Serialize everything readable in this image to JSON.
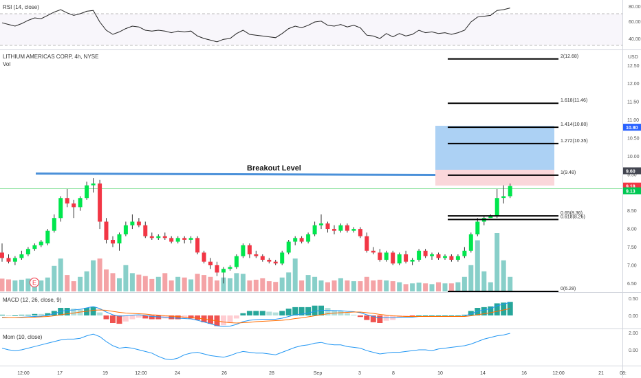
{
  "header": {
    "title": "LITHIUM AMERICAS CORP, 4h, NYSE",
    "vol_label": "Vol",
    "currency": "USD"
  },
  "indicators": {
    "rsi": {
      "label": "RSI (14, close)",
      "ticks": [
        "80.00",
        "60.00",
        "40.00"
      ]
    },
    "macd": {
      "label": "MACD (12, 26, close, 9)",
      "ticks": [
        "0.50",
        "0.00"
      ]
    },
    "mom": {
      "label": "Mom (10, close)",
      "ticks": [
        "2.00",
        "0.00"
      ]
    }
  },
  "annotation": {
    "breakout_label": "Breakout Level"
  },
  "earnings_marker": "E",
  "fib_levels": [
    {
      "label": "2(12.68)",
      "value": 12.68
    },
    {
      "label": "1.618(11.46)",
      "value": 11.46
    },
    {
      "label": "1.414(10.80)",
      "value": 10.8
    },
    {
      "label": "1.272(10.35)",
      "value": 10.35
    },
    {
      "label": "1(9.48)",
      "value": 9.48
    },
    {
      "label": "0.65(8.36)",
      "value": 8.36
    },
    {
      "label": "0.618(8.26)",
      "value": 8.26
    },
    {
      "label": "0(6.28)",
      "value": 6.28
    }
  ],
  "price_tags": [
    {
      "label": "10.80",
      "value": 10.8,
      "color": "#2962ff"
    },
    {
      "label": "9.60",
      "value": 9.6,
      "color": "#434651"
    },
    {
      "label": "9.18",
      "value": 9.18,
      "color": "#f23645"
    },
    {
      "label": "9.13",
      "value": 9.05,
      "color": "#00c853"
    }
  ],
  "x_axis_labels": [
    "12:00",
    "17",
    "19",
    "12:00",
    "24",
    "26",
    "28",
    "Sep",
    "3",
    "8",
    "10",
    "14",
    "16",
    "12:00",
    "21",
    "08:"
  ],
  "colors": {
    "up": "#00e64d",
    "down": "#f23645",
    "vol_up": "#88cfc9",
    "vol_down": "#f4a3a6",
    "breakout_line": "#4a90d9",
    "target_zone": "#9ec9f2",
    "stop_zone": "#f9d0d3",
    "rsi_line": "#222222",
    "macd_line": "#2196f3",
    "signal_line": "#ff6d00",
    "mom_line": "#2196f3"
  },
  "chart_data": {
    "type": "candlestick",
    "symbol": "LITHIUM AMERICAS CORP",
    "timeframe": "4h",
    "exchange": "NYSE",
    "price_range": [
      6.28,
      12.75
    ],
    "price_ticks": [
      6.5,
      7.0,
      7.5,
      8.0,
      8.5,
      9.0,
      9.5,
      10.0,
      10.5,
      11.0,
      11.5,
      12.0,
      12.5
    ],
    "last_price": 9.18,
    "breakout_level": 9.48,
    "candles": [
      [
        7.35,
        7.6,
        7.1,
        7.2
      ],
      [
        7.2,
        7.3,
        7.05,
        7.1
      ],
      [
        7.1,
        7.25,
        7.0,
        7.2
      ],
      [
        7.2,
        7.4,
        7.15,
        7.3
      ],
      [
        7.3,
        7.5,
        7.25,
        7.45
      ],
      [
        7.45,
        7.6,
        7.4,
        7.55
      ],
      [
        7.55,
        7.7,
        7.5,
        7.65
      ],
      [
        7.6,
        8.0,
        7.55,
        7.95
      ],
      [
        7.95,
        8.4,
        7.9,
        8.3
      ],
      [
        8.3,
        8.9,
        8.2,
        8.85
      ],
      [
        8.85,
        9.1,
        8.6,
        8.7
      ],
      [
        8.7,
        8.8,
        8.3,
        8.6
      ],
      [
        8.6,
        8.9,
        8.5,
        8.85
      ],
      [
        8.85,
        9.3,
        8.8,
        9.2
      ],
      [
        9.2,
        9.4,
        9.0,
        9.25
      ],
      [
        9.25,
        9.35,
        8.0,
        8.2
      ],
      [
        8.2,
        8.3,
        7.6,
        7.7
      ],
      [
        7.7,
        7.8,
        7.5,
        7.6
      ],
      [
        7.6,
        7.9,
        7.4,
        7.85
      ],
      [
        7.85,
        8.2,
        7.8,
        8.1
      ],
      [
        8.1,
        8.4,
        8.0,
        8.2
      ],
      [
        8.2,
        8.3,
        8.05,
        8.1
      ],
      [
        8.1,
        8.2,
        7.75,
        7.8
      ],
      [
        7.8,
        7.9,
        7.7,
        7.75
      ],
      [
        7.75,
        7.85,
        7.7,
        7.8
      ],
      [
        7.8,
        7.9,
        7.7,
        7.75
      ],
      [
        7.75,
        7.8,
        7.6,
        7.65
      ],
      [
        7.65,
        7.8,
        7.6,
        7.75
      ],
      [
        7.75,
        7.8,
        7.6,
        7.7
      ],
      [
        7.7,
        7.8,
        7.6,
        7.75
      ],
      [
        7.75,
        7.8,
        7.3,
        7.35
      ],
      [
        7.35,
        7.4,
        7.05,
        7.1
      ],
      [
        7.1,
        7.2,
        6.9,
        7.0
      ],
      [
        7.0,
        7.1,
        6.7,
        6.8
      ],
      [
        6.8,
        6.95,
        6.5,
        6.9
      ],
      [
        6.9,
        7.0,
        6.85,
        6.95
      ],
      [
        6.95,
        7.3,
        6.9,
        7.25
      ],
      [
        7.25,
        7.6,
        7.2,
        7.55
      ],
      [
        7.55,
        7.6,
        7.2,
        7.3
      ],
      [
        7.3,
        7.4,
        7.2,
        7.25
      ],
      [
        7.25,
        7.3,
        7.1,
        7.15
      ],
      [
        7.15,
        7.2,
        7.05,
        7.1
      ],
      [
        7.1,
        7.15,
        7.0,
        7.05
      ],
      [
        7.05,
        7.4,
        7.0,
        7.35
      ],
      [
        7.35,
        7.7,
        7.3,
        7.65
      ],
      [
        7.65,
        7.8,
        7.55,
        7.75
      ],
      [
        7.75,
        7.8,
        7.6,
        7.65
      ],
      [
        7.65,
        7.9,
        7.6,
        7.85
      ],
      [
        7.85,
        8.2,
        7.8,
        8.1
      ],
      [
        8.1,
        8.4,
        8.0,
        8.15
      ],
      [
        8.15,
        8.2,
        7.9,
        8.0
      ],
      [
        8.0,
        8.1,
        7.85,
        7.95
      ],
      [
        7.95,
        8.15,
        7.9,
        8.1
      ],
      [
        8.1,
        8.15,
        7.9,
        7.95
      ],
      [
        7.95,
        8.05,
        7.9,
        8.0
      ],
      [
        8.0,
        8.05,
        7.75,
        7.8
      ],
      [
        7.8,
        7.9,
        7.35,
        7.4
      ],
      [
        7.4,
        7.5,
        7.3,
        7.35
      ],
      [
        7.35,
        7.45,
        7.1,
        7.15
      ],
      [
        7.15,
        7.4,
        7.1,
        7.35
      ],
      [
        7.35,
        7.4,
        7.0,
        7.05
      ],
      [
        7.05,
        7.35,
        7.0,
        7.3
      ],
      [
        7.3,
        7.4,
        7.05,
        7.1
      ],
      [
        7.1,
        7.2,
        7.0,
        7.15
      ],
      [
        7.15,
        7.45,
        7.1,
        7.4
      ],
      [
        7.4,
        7.45,
        7.2,
        7.25
      ],
      [
        7.25,
        7.35,
        7.15,
        7.3
      ],
      [
        7.3,
        7.35,
        7.15,
        7.2
      ],
      [
        7.2,
        7.3,
        7.15,
        7.25
      ],
      [
        7.25,
        7.3,
        7.1,
        7.15
      ],
      [
        7.15,
        7.3,
        7.1,
        7.25
      ],
      [
        7.25,
        7.5,
        7.2,
        7.4
      ],
      [
        7.4,
        7.9,
        7.35,
        7.85
      ],
      [
        7.85,
        8.3,
        7.8,
        8.2
      ],
      [
        8.2,
        8.35,
        8.1,
        8.3
      ],
      [
        8.3,
        8.4,
        8.3,
        8.35
      ],
      [
        8.35,
        9.1,
        8.3,
        8.85
      ],
      [
        8.85,
        9.2,
        8.7,
        8.9
      ],
      [
        8.9,
        9.25,
        8.85,
        9.18
      ]
    ],
    "candle_x_start": 3,
    "candle_x_step": 9.47,
    "volume": [
      0.35,
      0.33,
      0.3,
      0.32,
      0.35,
      0.3,
      0.3,
      0.38,
      0.7,
      0.9,
      0.45,
      0.28,
      0.4,
      0.55,
      0.85,
      0.9,
      0.6,
      0.5,
      0.36,
      0.72,
      0.5,
      0.46,
      0.42,
      0.34,
      0.4,
      0.5,
      0.3,
      0.4,
      0.38,
      0.33,
      0.48,
      0.45,
      0.4,
      0.3,
      0.38,
      0.36,
      0.5,
      0.48,
      0.3,
      0.32,
      0.36,
      0.28,
      0.26,
      0.38,
      0.52,
      0.9,
      0.3,
      0.45,
      0.4,
      0.3,
      0.25,
      0.3,
      0.36,
      0.3,
      0.28,
      0.28,
      0.4,
      0.3,
      0.32,
      0.3,
      0.28,
      0.25,
      0.2,
      0.22,
      0.24,
      0.22,
      0.2,
      0.25,
      0.22,
      0.22,
      0.25,
      0.4,
      0.72,
      1.4,
      0.55,
      0.25,
      1.6,
      0.85,
      0.4
    ],
    "rsi": [
      59,
      57,
      55,
      58,
      62,
      65,
      64,
      68,
      72,
      75,
      71,
      68,
      70,
      73,
      74,
      60,
      50,
      45,
      48,
      52,
      55,
      54,
      50,
      49,
      50,
      49,
      47,
      49,
      48,
      49,
      43,
      40,
      38,
      36,
      39,
      40,
      46,
      50,
      45,
      44,
      43,
      42,
      41,
      46,
      52,
      55,
      53,
      56,
      60,
      61,
      56,
      55,
      57,
      54,
      56,
      53,
      44,
      43,
      40,
      46,
      42,
      46,
      43,
      45,
      50,
      47,
      48,
      46,
      47,
      45,
      47,
      50,
      60,
      66,
      67,
      68,
      74,
      75,
      77
    ],
    "macd": [
      -0.05,
      -0.06,
      -0.06,
      -0.05,
      -0.04,
      -0.03,
      -0.02,
      0.0,
      0.05,
      0.12,
      0.15,
      0.16,
      0.18,
      0.22,
      0.26,
      0.2,
      0.1,
      0.02,
      -0.02,
      -0.01,
      0.01,
      0.02,
      0.0,
      -0.03,
      -0.04,
      -0.05,
      -0.07,
      -0.08,
      -0.09,
      -0.1,
      -0.14,
      -0.19,
      -0.24,
      -0.3,
      -0.32,
      -0.31,
      -0.26,
      -0.18,
      -0.14,
      -0.12,
      -0.11,
      -0.11,
      -0.11,
      -0.08,
      -0.03,
      0.02,
      0.04,
      0.07,
      0.12,
      0.15,
      0.15,
      0.14,
      0.14,
      0.12,
      0.11,
      0.08,
      0.02,
      -0.03,
      -0.07,
      -0.06,
      -0.07,
      -0.05,
      -0.05,
      -0.05,
      -0.03,
      -0.03,
      -0.03,
      -0.03,
      -0.03,
      -0.03,
      -0.03,
      -0.02,
      0.05,
      0.12,
      0.16,
      0.2,
      0.28,
      0.33,
      0.38
    ],
    "signal": [
      -0.06,
      -0.06,
      -0.06,
      -0.06,
      -0.05,
      -0.05,
      -0.04,
      -0.03,
      -0.01,
      0.02,
      0.05,
      0.07,
      0.1,
      0.12,
      0.15,
      0.16,
      0.15,
      0.12,
      0.09,
      0.07,
      0.06,
      0.05,
      0.04,
      0.02,
      0.01,
      -0.01,
      -0.02,
      -0.03,
      -0.05,
      -0.06,
      -0.08,
      -0.1,
      -0.13,
      -0.16,
      -0.19,
      -0.21,
      -0.22,
      -0.21,
      -0.2,
      -0.18,
      -0.17,
      -0.16,
      -0.15,
      -0.14,
      -0.12,
      -0.09,
      -0.07,
      -0.04,
      -0.01,
      0.02,
      0.05,
      0.07,
      0.08,
      0.09,
      0.1,
      0.1,
      0.08,
      0.06,
      0.03,
      0.01,
      -0.01,
      -0.02,
      -0.03,
      -0.03,
      -0.03,
      -0.03,
      -0.03,
      -0.03,
      -0.03,
      -0.03,
      -0.03,
      -0.03,
      -0.01,
      0.02,
      0.05,
      0.08,
      0.12,
      0.16,
      0.2
    ],
    "momentum": [
      0.2,
      0.0,
      -0.1,
      0.0,
      0.2,
      0.4,
      0.6,
      0.8,
      1.0,
      1.2,
      1.3,
      1.3,
      1.4,
      1.7,
      1.9,
      1.6,
      1.0,
      0.5,
      0.2,
      0.3,
      0.2,
      0.0,
      -0.2,
      -0.4,
      -0.8,
      -1.1,
      -1.2,
      -1.0,
      -0.6,
      -0.4,
      -0.3,
      -0.5,
      -0.7,
      -0.8,
      -0.9,
      -0.7,
      -0.4,
      -0.2,
      -0.3,
      -0.4,
      -0.4,
      -0.5,
      -0.6,
      -0.3,
      0.0,
      0.3,
      0.5,
      0.6,
      0.8,
      0.9,
      0.7,
      0.6,
      0.6,
      0.4,
      0.3,
      0.2,
      -0.1,
      -0.3,
      -0.5,
      -0.4,
      -0.3,
      -0.3,
      -0.2,
      -0.1,
      0.0,
      0.0,
      -0.1,
      0.1,
      0.2,
      0.3,
      0.4,
      0.5,
      0.7,
      1.0,
      1.3,
      1.5,
      1.7,
      1.8,
      2.0
    ]
  }
}
